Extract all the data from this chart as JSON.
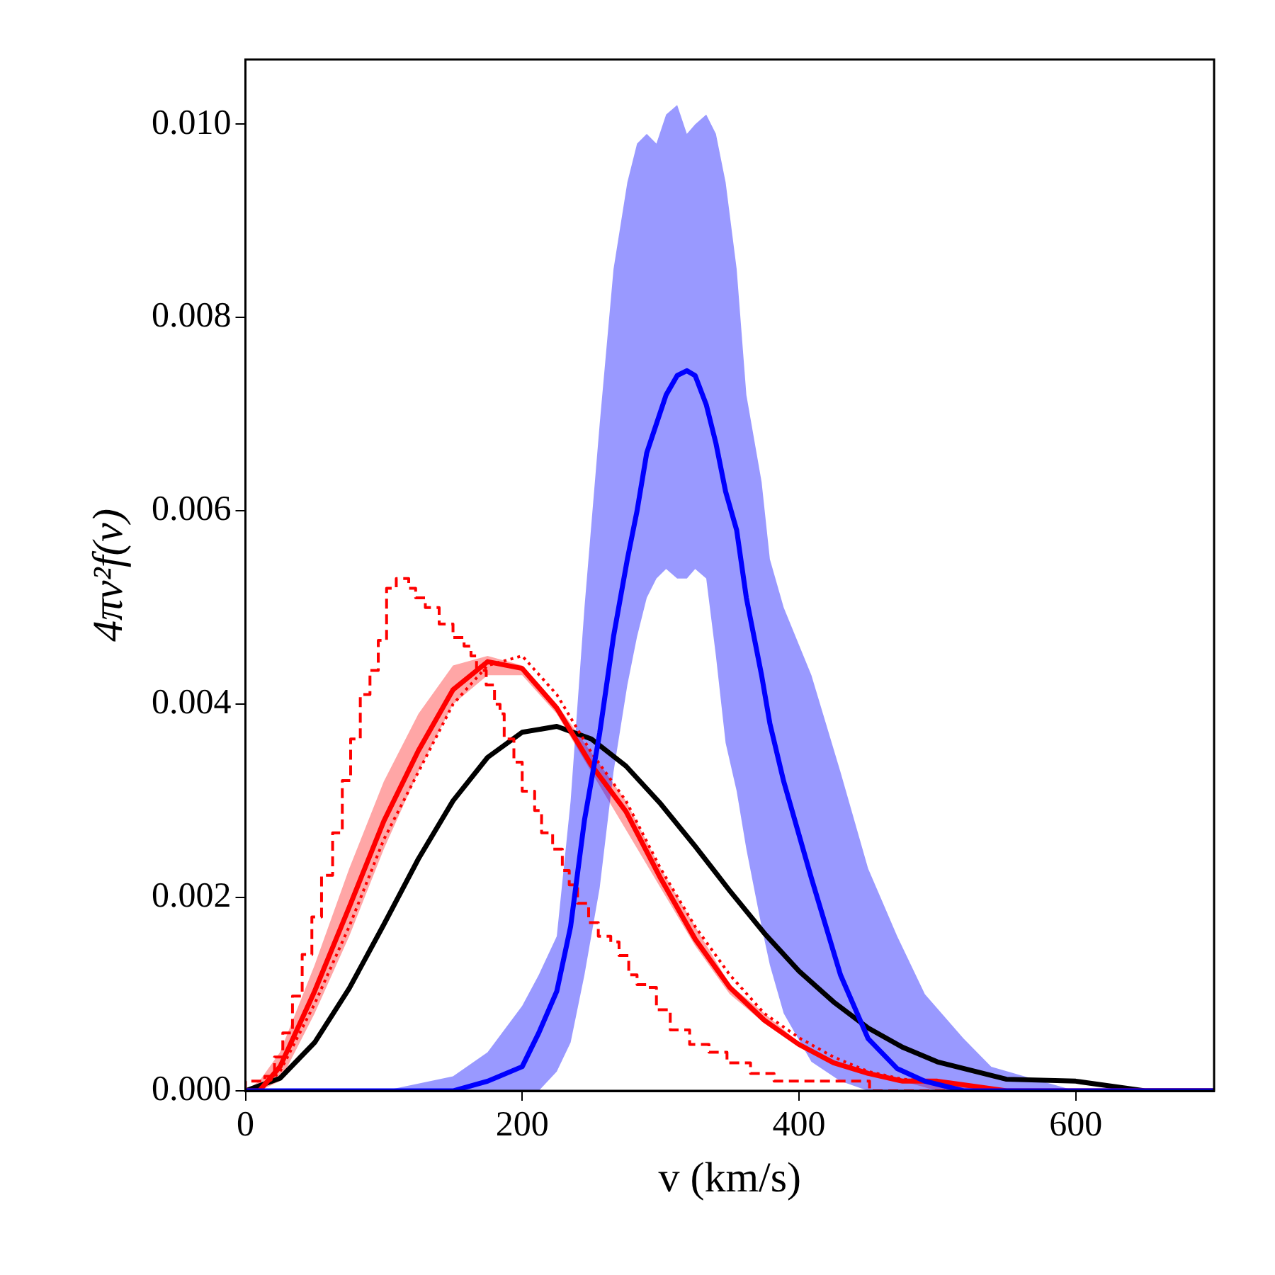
{
  "chart_data": {
    "type": "line",
    "xlabel": "v (km/s)",
    "ylabel": "4πv²f(v)",
    "xlim": [
      0,
      700
    ],
    "xticks": [
      0,
      200,
      400,
      600
    ],
    "ylim": [
      0,
      0.01067
    ],
    "yticks": [
      {
        "value": 0,
        "label": "0.000"
      },
      {
        "value": 0.002,
        "label": "0.002"
      },
      {
        "value": 0.004,
        "label": "0.004"
      },
      {
        "value": 0.006,
        "label": "0.006"
      },
      {
        "value": 0.008,
        "label": "0.008"
      },
      {
        "value": 0.01,
        "label": "0.010"
      }
    ],
    "series": [
      {
        "type": "line",
        "color": "#0000ff",
        "x": [
          0,
          100,
          150,
          175,
          200,
          212,
          225,
          235,
          245,
          256,
          266,
          276,
          283,
          290,
          297,
          304,
          312,
          319,
          325,
          333,
          340,
          347,
          355,
          362,
          373,
          379,
          389,
          409,
          430,
          450,
          471,
          491,
          519,
          539,
          575,
          600,
          650,
          700
        ],
        "values": [
          0,
          0,
          0,
          0.0001,
          0.00025,
          0.0006,
          0.00103,
          0.0017,
          0.0028,
          0.0037,
          0.0047,
          0.0055,
          0.006,
          0.0066,
          0.0069,
          0.0072,
          0.0074,
          0.00745,
          0.0074,
          0.0071,
          0.0067,
          0.0062,
          0.0058,
          0.0051,
          0.0043,
          0.0038,
          0.0032,
          0.0022,
          0.0012,
          0.00054,
          0.00023,
          0.0001,
          0,
          0,
          0,
          0,
          0,
          0
        ],
        "lower": [
          0,
          0,
          0,
          0,
          0,
          0,
          0.0002,
          0.0005,
          0.0012,
          0.0021,
          0.0033,
          0.0042,
          0.0047,
          0.0051,
          0.0053,
          0.0054,
          0.0053,
          0.0053,
          0.0054,
          0.0053,
          0.0045,
          0.0036,
          0.0031,
          0.0025,
          0.0017,
          0.0013,
          0.0008,
          0.0003,
          0.0001,
          0,
          0,
          0,
          0,
          0,
          0,
          0,
          0,
          0
        ],
        "upper": [
          0,
          0,
          0.00015,
          0.0004,
          0.00088,
          0.0012,
          0.0016,
          0.003,
          0.005,
          0.0069,
          0.0085,
          0.0094,
          0.0098,
          0.0099,
          0.0098,
          0.0101,
          0.0102,
          0.0099,
          0.01,
          0.0101,
          0.0099,
          0.0094,
          0.0085,
          0.0072,
          0.0063,
          0.0055,
          0.005,
          0.0043,
          0.0033,
          0.0023,
          0.0016,
          0.001,
          0.00054,
          0.00025,
          0.0001,
          0,
          0,
          0
        ]
      },
      {
        "type": "line",
        "color": "#ff0000",
        "x": [
          0,
          10,
          25,
          50,
          75,
          100,
          125,
          150,
          175,
          200,
          225,
          250,
          275,
          300,
          325,
          350,
          375,
          400,
          425,
          450,
          475,
          500,
          550,
          600,
          700
        ],
        "values": [
          0,
          0,
          0.00025,
          0.00103,
          0.0019,
          0.00279,
          0.00352,
          0.00415,
          0.00444,
          0.00437,
          0.00396,
          0.00337,
          0.00289,
          0.0022,
          0.00157,
          0.00107,
          0.00073,
          0.00048,
          0.00029,
          0.00018,
          0.0001,
          0.0001,
          0,
          0,
          0
        ],
        "lower": [
          0,
          0,
          0.0001,
          0.0008,
          0.0016,
          0.0025,
          0.0033,
          0.004,
          0.0043,
          0.0043,
          0.0039,
          0.0033,
          0.0027,
          0.0021,
          0.0015,
          0.001,
          0.0007,
          0.00045,
          0.00027,
          0.00016,
          0.0001,
          0,
          0,
          0,
          0
        ],
        "upper": [
          0,
          0.0001,
          0.0004,
          0.0013,
          0.0023,
          0.0032,
          0.0039,
          0.0044,
          0.0045,
          0.0044,
          0.004,
          0.0035,
          0.003,
          0.0023,
          0.0017,
          0.0011,
          0.0008,
          0.0005,
          0.00031,
          0.0002,
          0.0001,
          0.0001,
          0,
          0,
          0
        ]
      },
      {
        "type": "line",
        "color": "#ff0000",
        "line_style": "dotted",
        "x": [
          0,
          10,
          25,
          50,
          75,
          100,
          125,
          150,
          175,
          200,
          225,
          250,
          275,
          300,
          325,
          350,
          375,
          400,
          425,
          450,
          475,
          500,
          550,
          600,
          700
        ],
        "values": [
          0,
          0,
          0.0002,
          0.0009,
          0.0017,
          0.0026,
          0.0033,
          0.004,
          0.0044,
          0.0045,
          0.0041,
          0.0035,
          0.003,
          0.0023,
          0.0017,
          0.0012,
          0.0008,
          0.00055,
          0.00035,
          0.0002,
          0.00012,
          0.0001,
          0,
          0,
          0
        ]
      },
      {
        "type": "step",
        "color": "#ff0000",
        "line_style": "dashed",
        "x": [
          0,
          7,
          14,
          21,
          27,
          34,
          41,
          48,
          55,
          63,
          70,
          76,
          83,
          90,
          96,
          102,
          109,
          118,
          123,
          130,
          140,
          150,
          158,
          163,
          167,
          174,
          180,
          184,
          187,
          194,
          200,
          209,
          214,
          222,
          229,
          234,
          240,
          248,
          255,
          264,
          270,
          277,
          283,
          290,
          297,
          307,
          321,
          335,
          348,
          365,
          382,
          403,
          424,
          451,
          480,
          520,
          700
        ],
        "values": [
          0,
          0.0001,
          0.0001,
          0.00015,
          0.00035,
          0.0006,
          0.00098,
          0.00141,
          0.0018,
          0.00223,
          0.00267,
          0.00321,
          0.00364,
          0.0041,
          0.00435,
          0.00466,
          0.0052,
          0.0053,
          0.0052,
          0.0051,
          0.005,
          0.00483,
          0.00469,
          0.0046,
          0.0045,
          0.00435,
          0.0042,
          0.004,
          0.0039,
          0.00364,
          0.0034,
          0.0031,
          0.0029,
          0.00267,
          0.0025,
          0.00228,
          0.00213,
          0.00194,
          0.00174,
          0.0016,
          0.00154,
          0.0014,
          0.0012,
          0.0011,
          0.00107,
          0.00084,
          0.00063,
          0.00048,
          0.0004,
          0.00029,
          0.00018,
          0.0001,
          0.0001,
          0.0001,
          0,
          0,
          0
        ]
      },
      {
        "type": "line",
        "color": "#000000",
        "x": [
          0,
          25,
          50,
          75,
          100,
          125,
          150,
          175,
          200,
          225,
          250,
          275,
          300,
          325,
          350,
          375,
          400,
          425,
          450,
          475,
          500,
          550,
          600,
          650,
          700
        ],
        "values": [
          0,
          0.00013,
          0.0005,
          0.00106,
          0.00172,
          0.0024,
          0.003,
          0.00345,
          0.00371,
          0.00377,
          0.00364,
          0.00336,
          0.00297,
          0.00253,
          0.00207,
          0.00163,
          0.00124,
          0.00092,
          0.00065,
          0.00045,
          0.0003,
          0.00012,
          0.0001,
          0,
          0
        ]
      }
    ]
  }
}
